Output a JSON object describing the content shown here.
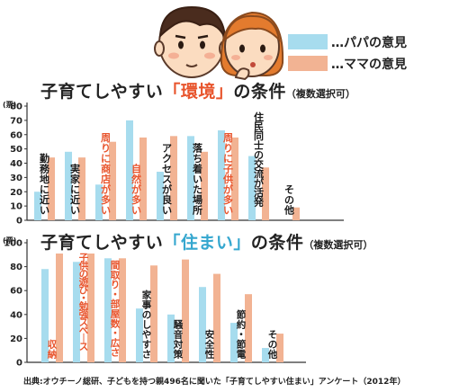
{
  "legend": [
    {
      "label": "…パパの意見",
      "color": "#a7dcee"
    },
    {
      "label": "…ママの意見",
      "color": "#f2b393"
    }
  ],
  "chart1": {
    "title_pre": "子育てしやすい",
    "title_hl": "「環境」",
    "title_post": "の条件",
    "title_note": "（複数選択可）",
    "unit": "(票)"
  },
  "chart2": {
    "title_pre": "子育てしやすい",
    "title_hl": "「住まい」",
    "title_post": "の条件",
    "title_note": "（複数選択可）",
    "unit": "(票)"
  },
  "source": "出典:オウチーノ総研、子どもを持つ親496名に聞いた「子育てしやすい住まい」アンケート（2012年）",
  "chart_data": [
    {
      "type": "bar",
      "title": "子育てしやすい「環境」の条件（複数選択可）",
      "ylabel": "(票)",
      "ylim": [
        0,
        80
      ],
      "yticks": [
        0,
        10,
        20,
        30,
        40,
        50,
        60,
        70,
        80
      ],
      "categories": [
        "勤務地に近い",
        "実家に近い",
        "周りに商店が多い",
        "自然が多い",
        "アクセスが良い",
        "落ち着いた場所",
        "周りに子供が多い",
        "住民同士の交流が活発",
        "その他"
      ],
      "highlight": [
        false,
        false,
        true,
        true,
        false,
        false,
        true,
        false,
        false
      ],
      "series": [
        {
          "name": "パパの意見",
          "color": "#a7dcee",
          "values": [
            20,
            48,
            25,
            70,
            34,
            59,
            63,
            45,
            0
          ]
        },
        {
          "name": "ママの意見",
          "color": "#f2b393",
          "values": [
            44,
            44,
            55,
            58,
            59,
            48,
            58,
            37,
            9
          ]
        }
      ],
      "highlight_color": "#e8542c"
    },
    {
      "type": "bar",
      "title": "子育てしやすい「住まい」の条件（複数選択可）",
      "ylabel": "(票)",
      "ylim": [
        0,
        100
      ],
      "yticks": [
        0,
        20,
        40,
        60,
        80,
        100
      ],
      "categories": [
        "収納",
        "子供の遊び・勉強スペース",
        "間取り・部屋数・広さ",
        "家事のしやすさ",
        "騒音対策",
        "安全性",
        "節約・節電",
        "その他"
      ],
      "highlight": [
        true,
        true,
        true,
        false,
        false,
        false,
        false,
        false
      ],
      "series": [
        {
          "name": "パパの意見",
          "color": "#a7dcee",
          "values": [
            78,
            84,
            87,
            45,
            40,
            63,
            33,
            12
          ]
        },
        {
          "name": "ママの意見",
          "color": "#f2b393",
          "values": [
            91,
            91,
            87,
            81,
            86,
            74,
            57,
            24
          ]
        }
      ],
      "highlight_color": "#e8542c"
    }
  ]
}
